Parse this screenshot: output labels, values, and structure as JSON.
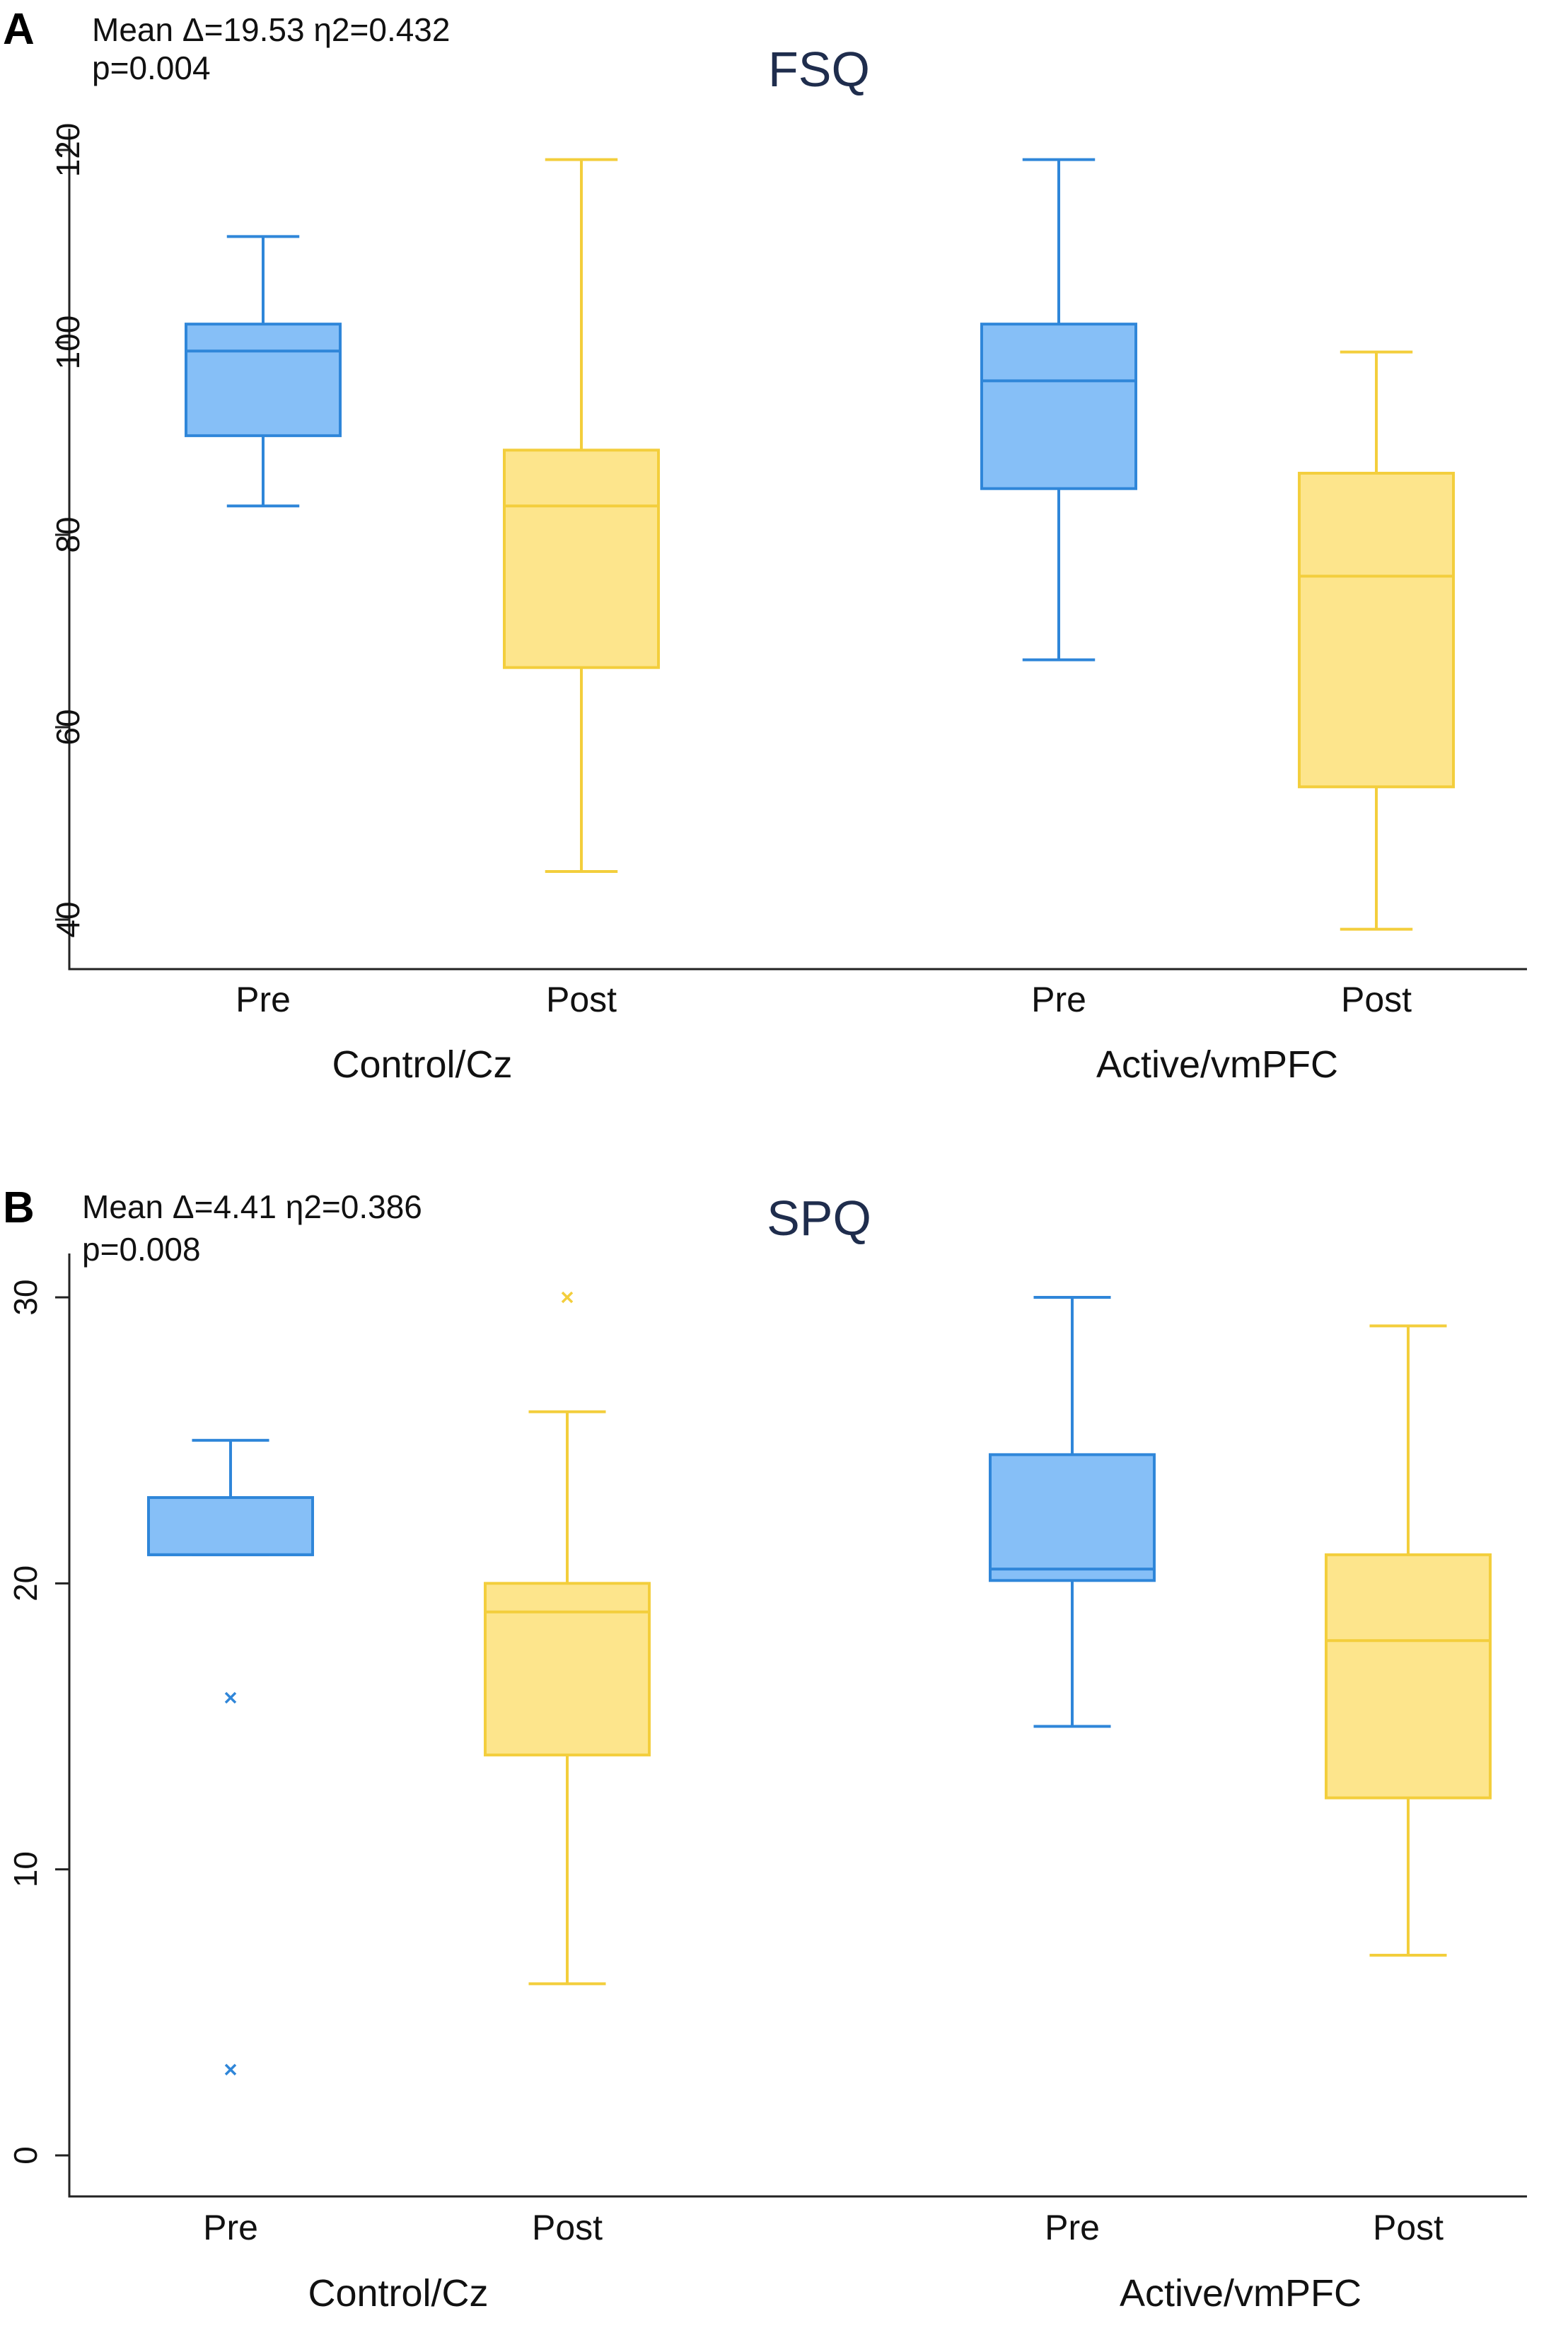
{
  "chart_data": [
    {
      "type": "box",
      "panel_label": "A",
      "title": "FSQ",
      "stats": {
        "line1": "Mean Δ=19.53 η2=0.432",
        "line2": "p=0.004"
      },
      "ylim": [
        35,
        124
      ],
      "yticks": [
        "40",
        "60",
        "80",
        "100",
        "120"
      ],
      "groups": [
        "Control/Cz",
        "Active/vmPFC"
      ],
      "boxes": [
        {
          "group": "Control/Cz",
          "label": "Pre",
          "color": "#2f86d9",
          "fill": "#86bff7",
          "min": 83,
          "q1": 90.3,
          "median": 99.1,
          "q3": 101.9,
          "max": 111,
          "outliers": []
        },
        {
          "group": "Control/Cz",
          "label": "Post",
          "color": "#f3ce3c",
          "fill": "#fde58c",
          "min": 45,
          "q1": 66.2,
          "median": 83,
          "q3": 88.8,
          "max": 119,
          "outliers": []
        },
        {
          "group": "Active/vmPFC",
          "label": "Pre",
          "color": "#2f86d9",
          "fill": "#86bff7",
          "min": 67,
          "q1": 84.8,
          "median": 96,
          "q3": 101.9,
          "max": 119,
          "outliers": []
        },
        {
          "group": "Active/vmPFC",
          "label": "Post",
          "color": "#f3ce3c",
          "fill": "#fde58c",
          "min": 39,
          "q1": 53.8,
          "median": 75.7,
          "q3": 86.4,
          "max": 99,
          "outliers": []
        }
      ]
    },
    {
      "type": "box",
      "panel_label": "B",
      "title": "SPQ",
      "stats": {
        "line1": "Mean Δ=4.41 η2=0.386",
        "line2": "p=0.008"
      },
      "ylim": [
        -2,
        31
      ],
      "yticks": [
        "0",
        "10",
        "20",
        "30"
      ],
      "groups": [
        "Control/Cz",
        "Active/vmPFC"
      ],
      "boxes": [
        {
          "group": "Control/Cz",
          "label": "Pre",
          "color": "#2f86d9",
          "fill": "#86bff7",
          "min": 21,
          "q1": 21,
          "median": 21,
          "q3": 23,
          "max": 25,
          "outliers": [
            16,
            3
          ]
        },
        {
          "group": "Control/Cz",
          "label": "Post",
          "color": "#f3ce3c",
          "fill": "#fde58c",
          "min": 6,
          "q1": 14,
          "median": 19,
          "q3": 20,
          "max": 26,
          "outliers": [
            30
          ]
        },
        {
          "group": "Active/vmPFC",
          "label": "Pre",
          "color": "#2f86d9",
          "fill": "#86bff7",
          "min": 15,
          "q1": 20.1,
          "median": 20.5,
          "q3": 24.5,
          "max": 30,
          "outliers": []
        },
        {
          "group": "Active/vmPFC",
          "label": "Post",
          "color": "#f3ce3c",
          "fill": "#fde58c",
          "min": 7,
          "q1": 12.5,
          "median": 18,
          "q3": 21,
          "max": 29,
          "outliers": []
        }
      ]
    }
  ]
}
